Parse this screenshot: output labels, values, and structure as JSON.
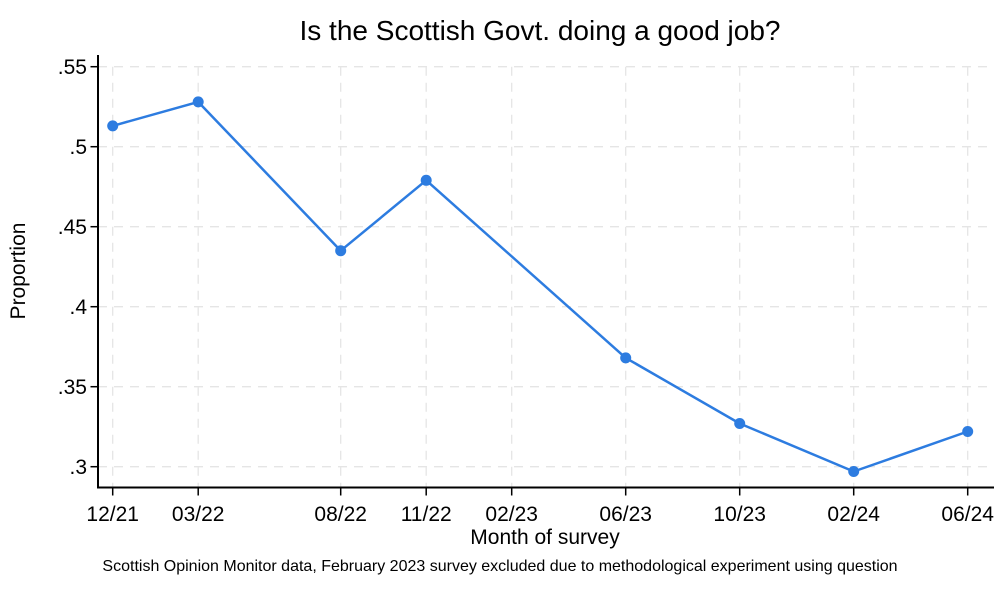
{
  "colors": {
    "line": "#2d7ce0",
    "grid": "#e5e5e5",
    "axis": "#000000",
    "background": "#ffffff",
    "text": "#000000"
  },
  "chart_data": {
    "type": "line",
    "title": "Is the Scottish Govt. doing a good job?",
    "xlabel": "Month of survey",
    "ylabel": "Proportion",
    "note": "Scottish Opinion Monitor data, February 2023 survey excluded due to methodological experiment using question",
    "grid": "both-dashed",
    "legend_position": "none",
    "ylim": [
      0.287,
      0.557
    ],
    "x_tick_labels": [
      "12/21",
      "03/22",
      "08/22",
      "11/22",
      "02/23",
      "06/23",
      "10/23",
      "02/24",
      "06/24"
    ],
    "y_ticks": [
      {
        "value": 0.3,
        "label": ".3"
      },
      {
        "value": 0.35,
        "label": ".35"
      },
      {
        "value": 0.4,
        "label": ".4"
      },
      {
        "value": 0.45,
        "label": ".45"
      },
      {
        "value": 0.5,
        "label": ".5"
      },
      {
        "value": 0.55,
        "label": ".55"
      }
    ],
    "series": [
      {
        "color": "#2d7ce0",
        "points": [
          {
            "x": "12/21",
            "y": 0.513
          },
          {
            "x": "03/22",
            "y": 0.528
          },
          {
            "x": "08/22",
            "y": 0.435
          },
          {
            "x": "11/22",
            "y": 0.479
          },
          {
            "x": "06/23",
            "y": 0.368
          },
          {
            "x": "10/23",
            "y": 0.327
          },
          {
            "x": "02/24",
            "y": 0.297
          },
          {
            "x": "06/24",
            "y": 0.322
          }
        ]
      }
    ]
  }
}
